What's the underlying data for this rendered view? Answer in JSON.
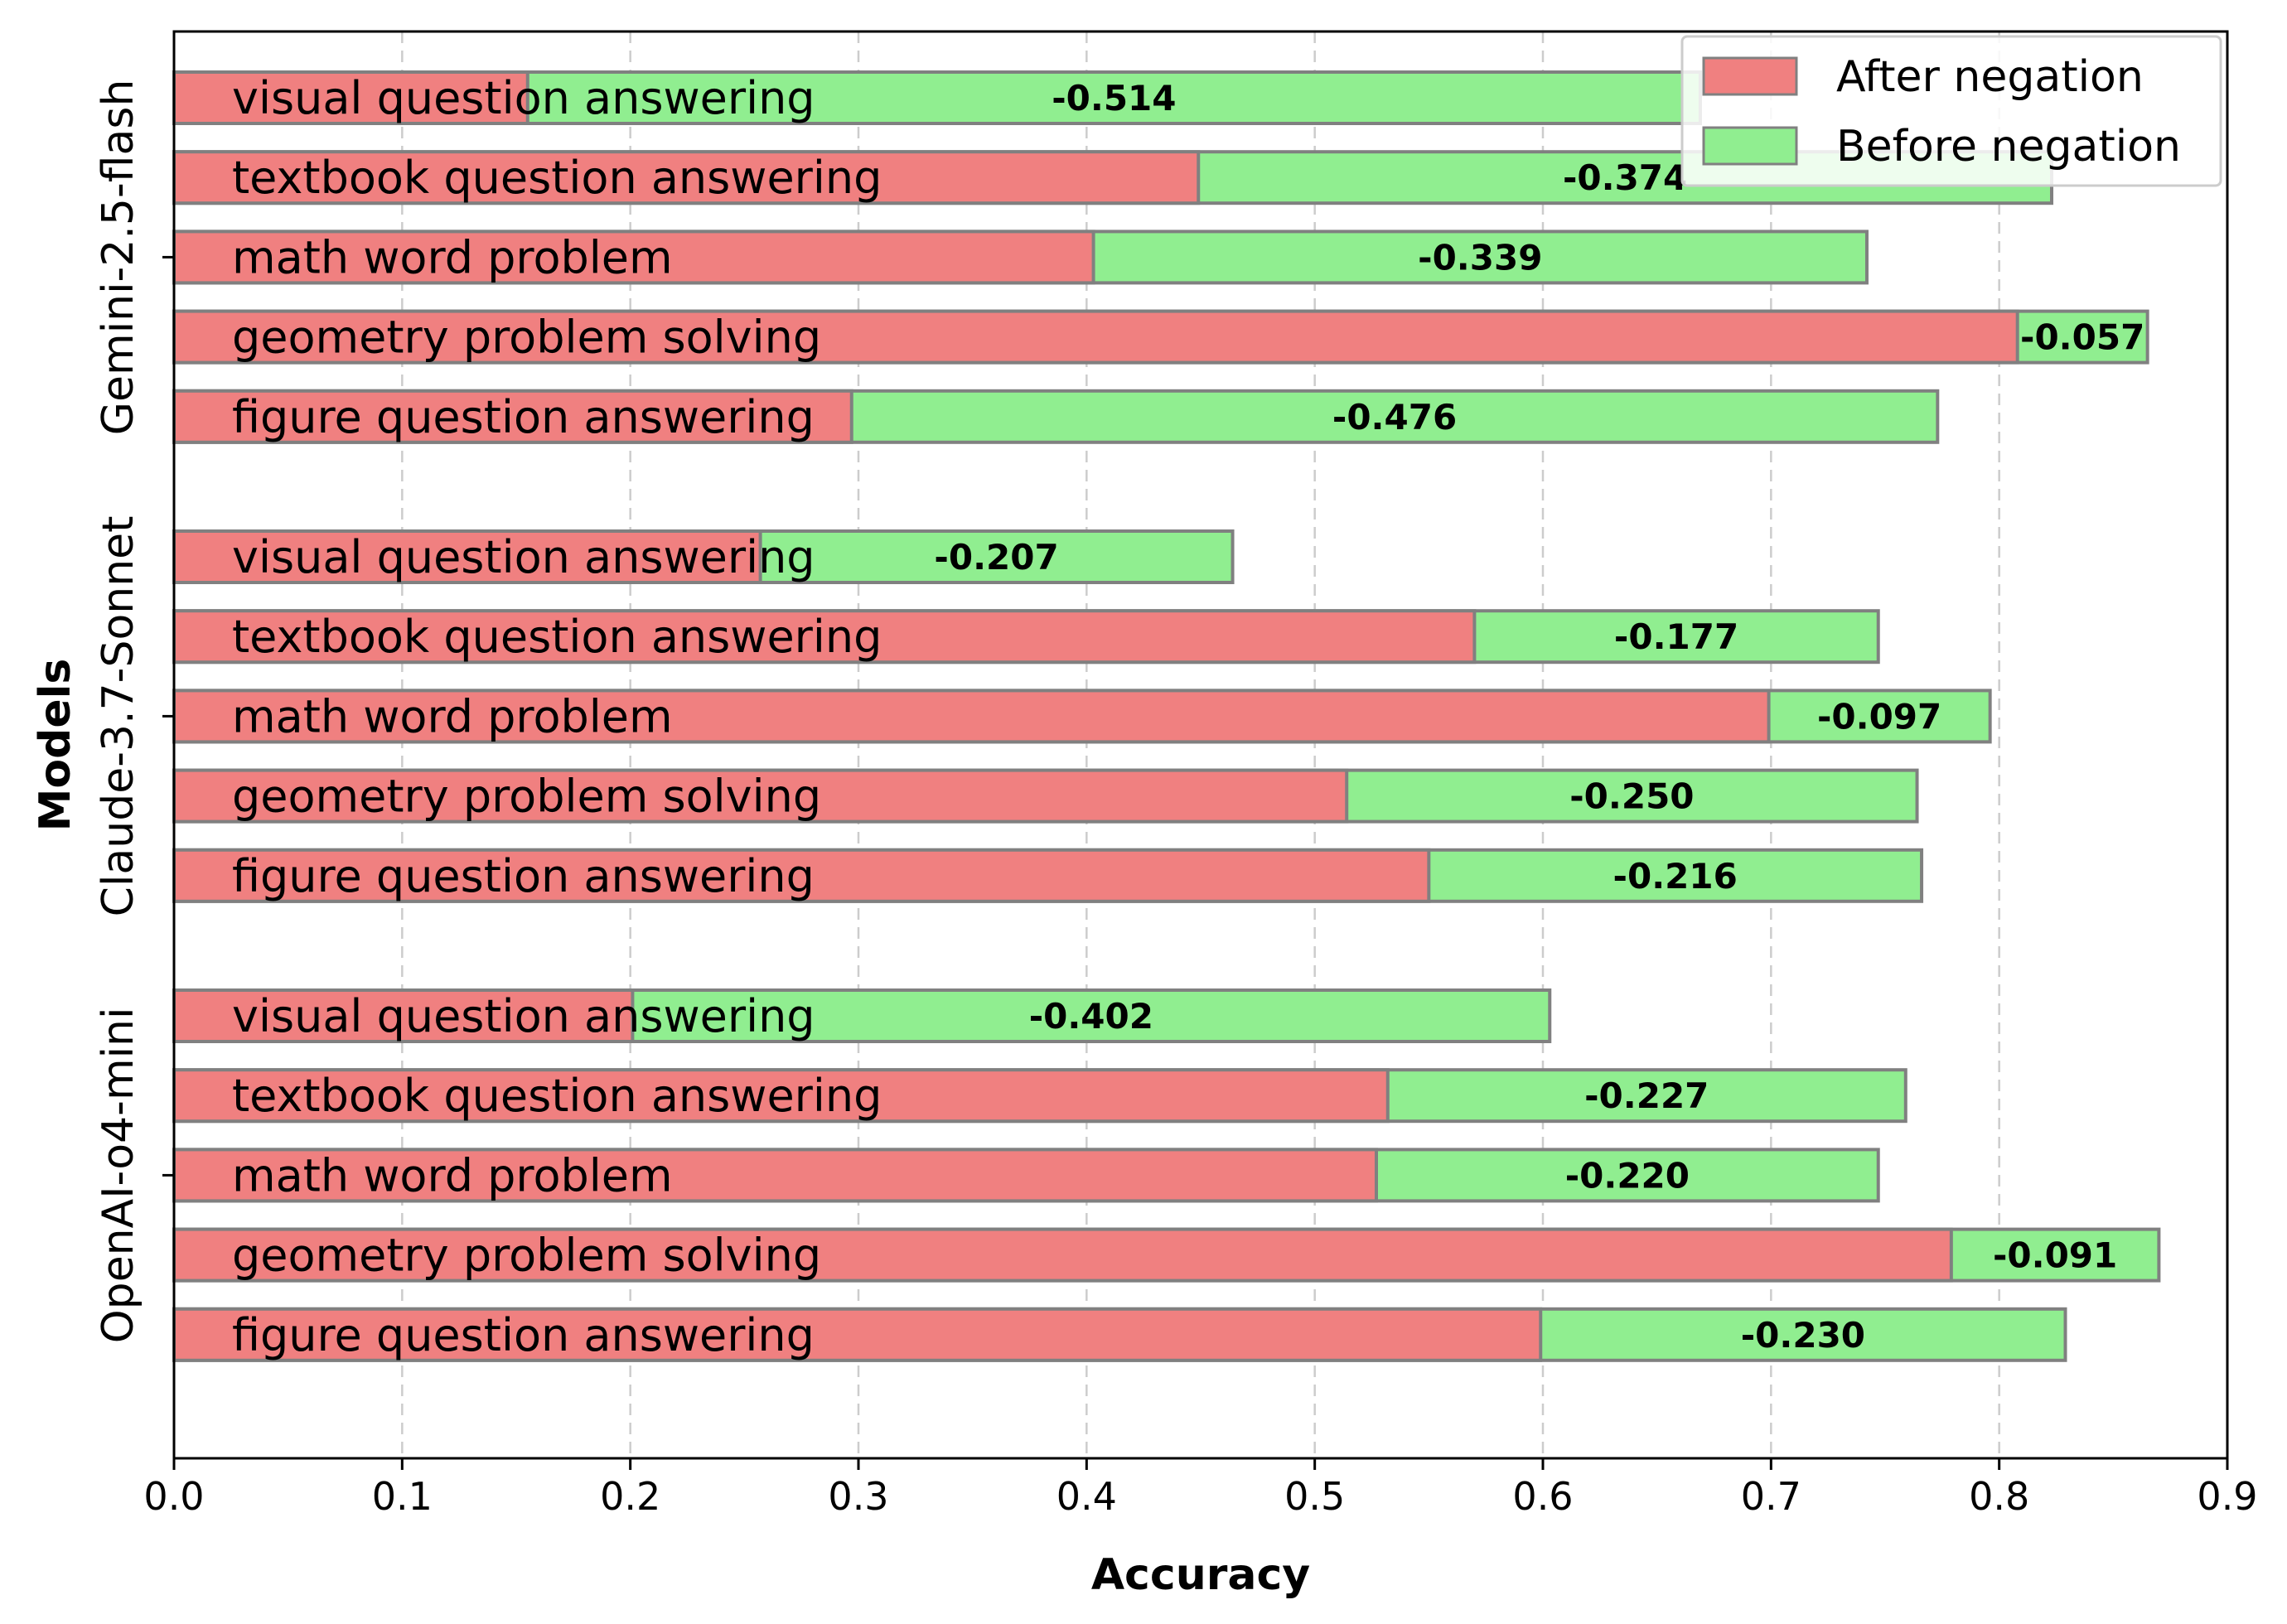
{
  "chart_data": {
    "type": "bar",
    "orientation": "horizontal",
    "xlabel": "Accuracy",
    "ylabel": "Models",
    "xlim": [
      0,
      0.9
    ],
    "xticks": [
      "0.0",
      "0.1",
      "0.2",
      "0.3",
      "0.4",
      "0.5",
      "0.6",
      "0.7",
      "0.8",
      "0.9"
    ],
    "grid": "vertical dashed",
    "legend_position": "top-right",
    "legend": [
      "After negation",
      "Before negation"
    ],
    "colors": {
      "after": "#f08080",
      "before": "#90ee90",
      "edge": "#808080"
    },
    "groups": [
      {
        "model": "Gemini-2.5-flash",
        "bars": [
          {
            "task": "visual question answering",
            "after": 0.155,
            "before": 0.669,
            "diff": "-0.514"
          },
          {
            "task": "textbook question answering",
            "after": 0.449,
            "before": 0.823,
            "diff": "-0.374"
          },
          {
            "task": "math word problem",
            "after": 0.403,
            "before": 0.742,
            "diff": "-0.339"
          },
          {
            "task": "geometry problem solving",
            "after": 0.808,
            "before": 0.865,
            "diff": "-0.057"
          },
          {
            "task": "figure question answering",
            "after": 0.297,
            "before": 0.773,
            "diff": "-0.476"
          }
        ]
      },
      {
        "model": "Claude-3.7-Sonnet",
        "bars": [
          {
            "task": "visual question answering",
            "after": 0.257,
            "before": 0.464,
            "diff": "-0.207"
          },
          {
            "task": "textbook question answering",
            "after": 0.57,
            "before": 0.747,
            "diff": "-0.177"
          },
          {
            "task": "math word problem",
            "after": 0.699,
            "before": 0.796,
            "diff": "-0.097"
          },
          {
            "task": "geometry problem solving",
            "after": 0.514,
            "before": 0.764,
            "diff": "-0.250"
          },
          {
            "task": "figure question answering",
            "after": 0.55,
            "before": 0.766,
            "diff": "-0.216"
          }
        ]
      },
      {
        "model": "OpenAI-o4-mini",
        "bars": [
          {
            "task": "visual question answering",
            "after": 0.201,
            "before": 0.603,
            "diff": "-0.402"
          },
          {
            "task": "textbook question answering",
            "after": 0.532,
            "before": 0.759,
            "diff": "-0.227"
          },
          {
            "task": "math word problem",
            "after": 0.527,
            "before": 0.747,
            "diff": "-0.220"
          },
          {
            "task": "geometry problem solving",
            "after": 0.779,
            "before": 0.87,
            "diff": "-0.091"
          },
          {
            "task": "figure question answering",
            "after": 0.599,
            "before": 0.829,
            "diff": "-0.230"
          }
        ]
      }
    ]
  }
}
